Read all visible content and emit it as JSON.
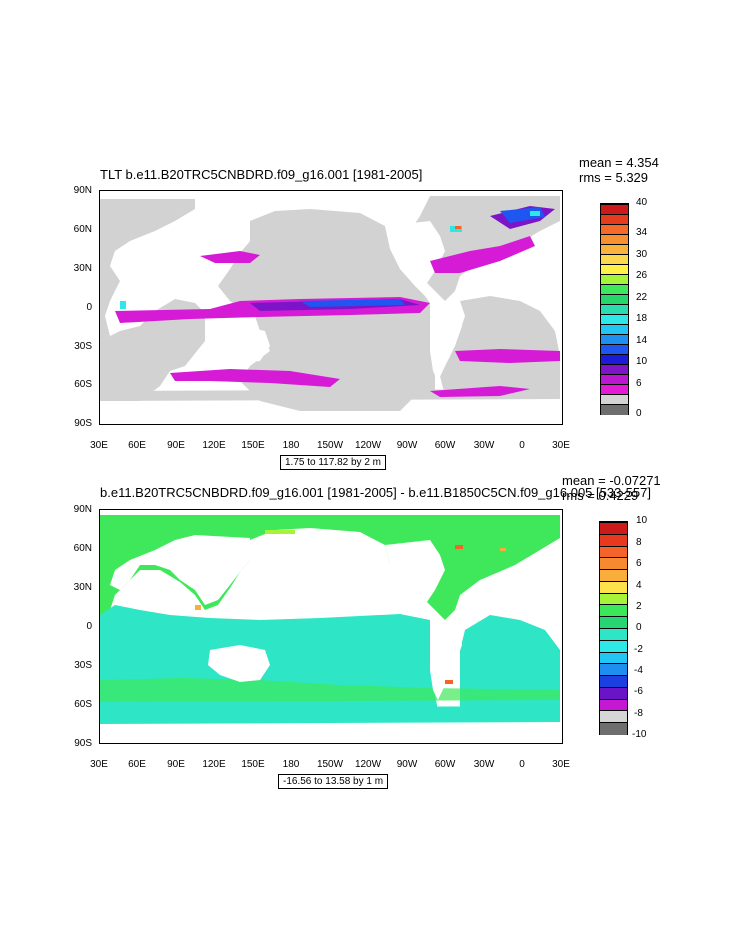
{
  "panel1": {
    "title": "TLT b.e11.B20TRC5CNBDRD.f09_g16.001 [1981-2005]",
    "mean": "mean = 4.354",
    "rms": "rms = 5.329",
    "range_label": "1.75 to 117.82 by 2 m",
    "colorbar_labels": [
      "40",
      "34",
      "30",
      "26",
      "22",
      "18",
      "14",
      "10",
      "6",
      "0"
    ],
    "colorbar_colors": [
      "#cc1a1a",
      "#e63c1e",
      "#f56a28",
      "#f7902e",
      "#f9b23c",
      "#fcd84e",
      "#fff146",
      "#a4f53a",
      "#3fe85a",
      "#27d66a",
      "#2bdcb0",
      "#2ee8e8",
      "#22c6f5",
      "#1e90f0",
      "#1f55f0",
      "#1c1cd8",
      "#7d14c8",
      "#bb16d0",
      "#e41bd6",
      "#d4d4d4",
      "#6e6e6e"
    ]
  },
  "panel2": {
    "title": "b.e11.B20TRC5CNBDRD.f09_g16.001 [1981-2005] - b.e11.B1850C5CN.f09_g16.005 [533-557]",
    "mean": "mean = -0.07271",
    "rms": "rms = 0.4229",
    "range_label": "-16.56 to 13.58 by 1 m",
    "colorbar_labels": [
      "10",
      "8",
      "6",
      "4",
      "2",
      "0",
      "-2",
      "-4",
      "-6",
      "-8",
      "-10"
    ],
    "colorbar_colors": [
      "#cc1a1a",
      "#e8381e",
      "#f5632a",
      "#f78a30",
      "#f9ae3c",
      "#fde24c",
      "#a6f43a",
      "#3be85a",
      "#27d672",
      "#2ee6c6",
      "#2ee8e8",
      "#22c6f5",
      "#1e8ef0",
      "#1c3fe0",
      "#6a14c8",
      "#c418d2",
      "#d6d6d6",
      "#6e6e6e"
    ]
  },
  "axes": {
    "y_labels": [
      "90N",
      "60N",
      "30N",
      "0",
      "30S",
      "60S",
      "90S"
    ],
    "x_labels": [
      "30E",
      "60E",
      "90E",
      "120E",
      "150E",
      "180",
      "150W",
      "120W",
      "90W",
      "60W",
      "30W",
      "0",
      "30E"
    ]
  },
  "chart_data": [
    {
      "type": "heatmap",
      "title": "TLT b.e11.B20TRC5CNBDRD.f09_g16.001 [1981-2005]",
      "x_ticks": [
        "30E",
        "60E",
        "90E",
        "120E",
        "150E",
        "180",
        "150W",
        "120W",
        "90W",
        "60W",
        "30W",
        "0",
        "30E"
      ],
      "y_ticks": [
        "90N",
        "60N",
        "30N",
        "0",
        "30S",
        "60S",
        "90S"
      ],
      "xlim": [
        30,
        390
      ],
      "ylim": [
        -90,
        90
      ],
      "contour_range": "1.75 to 117.82 by 2 m",
      "colorbar_ticks": [
        0,
        6,
        10,
        14,
        18,
        22,
        26,
        30,
        34,
        40
      ],
      "mean": 4.354,
      "rms": 5.329
    },
    {
      "type": "heatmap",
      "title": "b.e11.B20TRC5CNBDRD.f09_g16.001 [1981-2005] - b.e11.B1850C5CN.f09_g16.005 [533-557]",
      "x_ticks": [
        "30E",
        "60E",
        "90E",
        "120E",
        "150E",
        "180",
        "150W",
        "120W",
        "90W",
        "60W",
        "30W",
        "0",
        "30E"
      ],
      "y_ticks": [
        "90N",
        "60N",
        "30N",
        "0",
        "30S",
        "60S",
        "90S"
      ],
      "xlim": [
        30,
        390
      ],
      "ylim": [
        -90,
        90
      ],
      "contour_range": "-16.56 to 13.58 by 1 m",
      "colorbar_ticks": [
        -10,
        -8,
        -6,
        -4,
        -2,
        0,
        2,
        4,
        6,
        8,
        10
      ],
      "mean": -0.07271,
      "rms": 0.4229
    }
  ]
}
